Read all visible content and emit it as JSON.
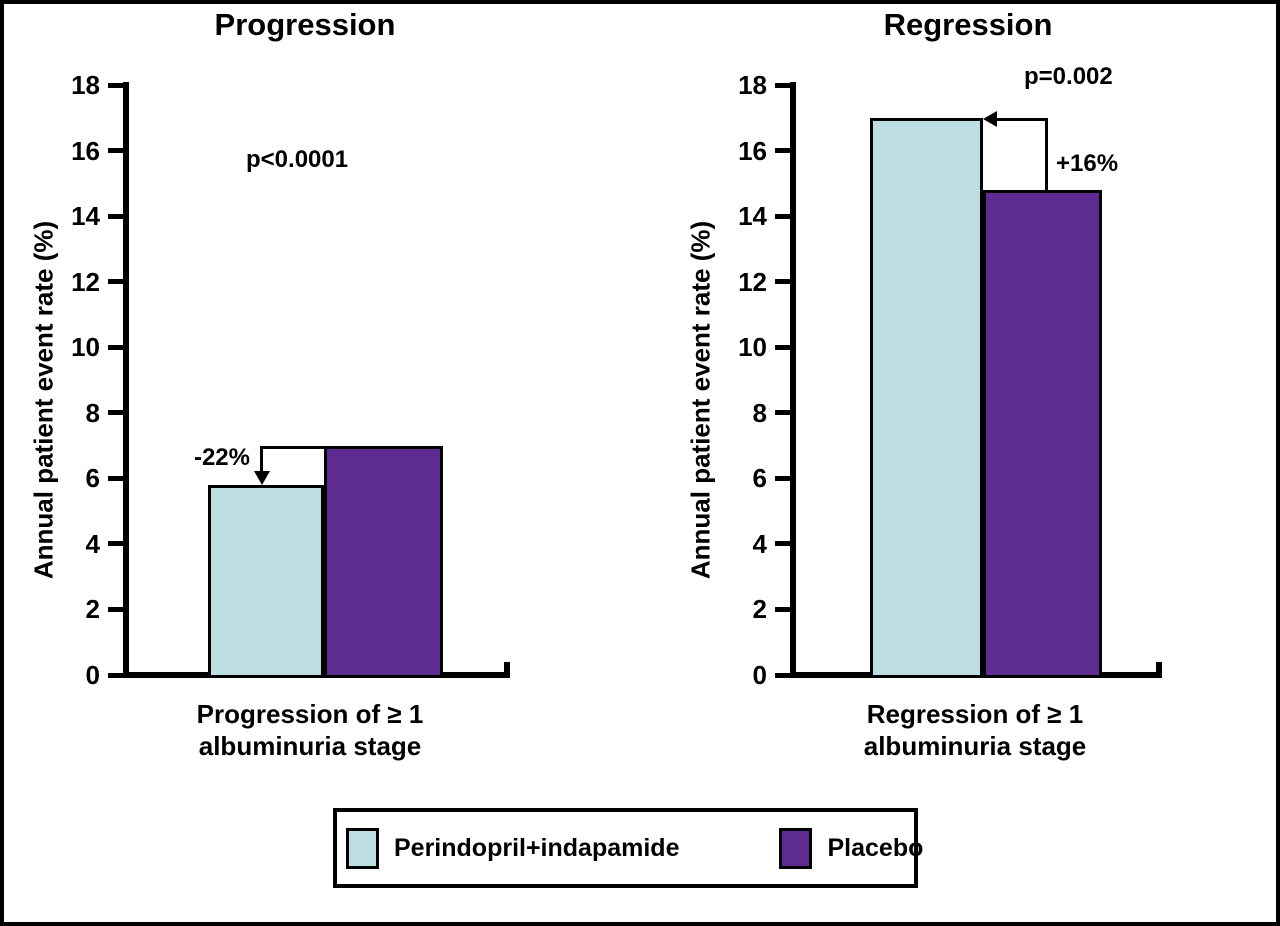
{
  "figure": {
    "background": "#ffffff",
    "frame_color": "#000000"
  },
  "colors": {
    "perindopril_indapamide": "#bcdee3",
    "placebo": "#5e2c90",
    "axis": "#000000"
  },
  "legend": {
    "items": [
      {
        "label": "Perindopril+indapamide",
        "color": "#bcdee3"
      },
      {
        "label": "Placebo",
        "color": "#5e2c90"
      }
    ]
  },
  "chart_data": [
    {
      "type": "bar",
      "panel": "left",
      "title": "Progression",
      "ylabel": "Annual patient event rate (%)",
      "xlabel_line1": "Progression of ≥ 1",
      "xlabel_line2": "albuminuria stage",
      "categories": [
        "Progression of ≥ 1 albuminuria stage"
      ],
      "ylim": [
        0,
        18
      ],
      "yticks": [
        0,
        2,
        4,
        6,
        8,
        10,
        12,
        14,
        16,
        18
      ],
      "grid": false,
      "legend_position": "shared-bottom",
      "series": [
        {
          "name": "Perindopril+indapamide",
          "values": [
            5.8
          ]
        },
        {
          "name": "Placebo",
          "values": [
            7.0
          ]
        }
      ],
      "annotations": {
        "p_value": "p<0.0001",
        "relative_difference": "-22%",
        "arrow": "from top of Placebo bar down onto Perindopril+indapamide bar"
      }
    },
    {
      "type": "bar",
      "panel": "right",
      "title": "Regression",
      "ylabel": "Annual patient event rate (%)",
      "xlabel_line1": "Regression of ≥ 1",
      "xlabel_line2": "albuminuria stage",
      "categories": [
        "Regression of ≥ 1 albuminuria stage"
      ],
      "ylim": [
        0,
        18
      ],
      "yticks": [
        0,
        2,
        4,
        6,
        8,
        10,
        12,
        14,
        16,
        18
      ],
      "grid": false,
      "legend_position": "shared-bottom",
      "series": [
        {
          "name": "Perindopril+indapamide",
          "values": [
            17.0
          ]
        },
        {
          "name": "Placebo",
          "values": [
            14.8
          ]
        }
      ],
      "annotations": {
        "p_value": "p=0.002",
        "relative_difference": "+16%",
        "arrow": "from top of Placebo bar up and left onto Perindopril+indapamide bar"
      }
    }
  ]
}
